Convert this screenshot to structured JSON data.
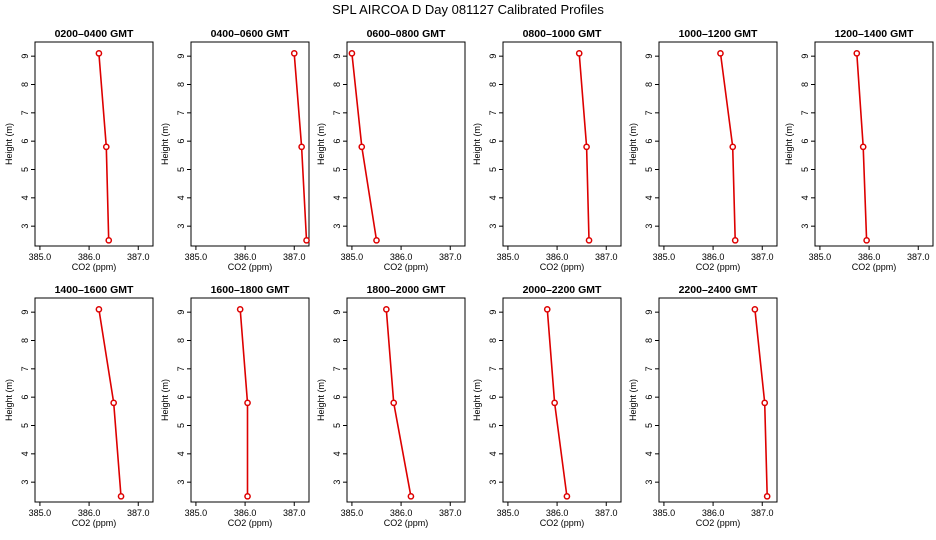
{
  "title": "SPL AIRCOA D  Day 081127  Calibrated Profiles",
  "colors": {
    "series": "#dd0000",
    "axis": "#000000"
  },
  "chart_data": [
    {
      "type": "line",
      "title": "0200–0400 GMT",
      "xlabel": "CO2 (ppm)",
      "ylabel": "Height (m)",
      "xlim": [
        384.9,
        387.3
      ],
      "ylim": [
        2.3,
        9.5
      ],
      "x_ticks": [
        "385.0",
        "386.0",
        "387.0"
      ],
      "y_ticks": [
        "3",
        "4",
        "5",
        "6",
        "7",
        "8",
        "9"
      ],
      "series": [
        {
          "x": [
            386.2,
            386.35,
            386.4
          ],
          "y": [
            9.1,
            5.8,
            2.5
          ]
        }
      ]
    },
    {
      "type": "line",
      "title": "0400–0600 GMT",
      "xlabel": "CO2 (ppm)",
      "ylabel": "Height (m)",
      "xlim": [
        384.9,
        387.3
      ],
      "ylim": [
        2.3,
        9.5
      ],
      "x_ticks": [
        "385.0",
        "386.0",
        "387.0"
      ],
      "y_ticks": [
        "3",
        "4",
        "5",
        "6",
        "7",
        "8",
        "9"
      ],
      "series": [
        {
          "x": [
            387.0,
            387.15,
            387.25
          ],
          "y": [
            9.1,
            5.8,
            2.5
          ]
        }
      ]
    },
    {
      "type": "line",
      "title": "0600–0800 GMT",
      "xlabel": "CO2 (ppm)",
      "ylabel": "Height (m)",
      "xlim": [
        384.9,
        387.3
      ],
      "ylim": [
        2.3,
        9.5
      ],
      "x_ticks": [
        "385.0",
        "386.0",
        "387.0"
      ],
      "y_ticks": [
        "3",
        "4",
        "5",
        "6",
        "7",
        "8",
        "9"
      ],
      "series": [
        {
          "x": [
            385.0,
            385.2,
            385.5
          ],
          "y": [
            9.1,
            5.8,
            2.5
          ]
        }
      ]
    },
    {
      "type": "line",
      "title": "0800–1000 GMT",
      "xlabel": "CO2 (ppm)",
      "ylabel": "Height (m)",
      "xlim": [
        384.9,
        387.3
      ],
      "ylim": [
        2.3,
        9.5
      ],
      "x_ticks": [
        "385.0",
        "386.0",
        "387.0"
      ],
      "y_ticks": [
        "3",
        "4",
        "5",
        "6",
        "7",
        "8",
        "9"
      ],
      "series": [
        {
          "x": [
            386.45,
            386.6,
            386.65
          ],
          "y": [
            9.1,
            5.8,
            2.5
          ]
        }
      ]
    },
    {
      "type": "line",
      "title": "1000–1200 GMT",
      "xlabel": "CO2 (ppm)",
      "ylabel": "Height (m)",
      "xlim": [
        384.9,
        387.3
      ],
      "ylim": [
        2.3,
        9.5
      ],
      "x_ticks": [
        "385.0",
        "386.0",
        "387.0"
      ],
      "y_ticks": [
        "3",
        "4",
        "5",
        "6",
        "7",
        "8",
        "9"
      ],
      "series": [
        {
          "x": [
            386.15,
            386.4,
            386.45
          ],
          "y": [
            9.1,
            5.8,
            2.5
          ]
        }
      ]
    },
    {
      "type": "line",
      "title": "1200–1400 GMT",
      "xlabel": "CO2 (ppm)",
      "ylabel": "Height (m)",
      "xlim": [
        384.9,
        387.3
      ],
      "ylim": [
        2.3,
        9.5
      ],
      "x_ticks": [
        "385.0",
        "386.0",
        "387.0"
      ],
      "y_ticks": [
        "3",
        "4",
        "5",
        "6",
        "7",
        "8",
        "9"
      ],
      "series": [
        {
          "x": [
            385.75,
            385.88,
            385.95
          ],
          "y": [
            9.1,
            5.8,
            2.5
          ]
        }
      ]
    },
    {
      "type": "line",
      "title": "1400–1600 GMT",
      "xlabel": "CO2 (ppm)",
      "ylabel": "Height (m)",
      "xlim": [
        384.9,
        387.3
      ],
      "ylim": [
        2.3,
        9.5
      ],
      "x_ticks": [
        "385.0",
        "386.0",
        "387.0"
      ],
      "y_ticks": [
        "3",
        "4",
        "5",
        "6",
        "7",
        "8",
        "9"
      ],
      "series": [
        {
          "x": [
            386.2,
            386.5,
            386.65
          ],
          "y": [
            9.1,
            5.8,
            2.5
          ]
        }
      ]
    },
    {
      "type": "line",
      "title": "1600–1800 GMT",
      "xlabel": "CO2 (ppm)",
      "ylabel": "Height (m)",
      "xlim": [
        384.9,
        387.3
      ],
      "ylim": [
        2.3,
        9.5
      ],
      "x_ticks": [
        "385.0",
        "386.0",
        "387.0"
      ],
      "y_ticks": [
        "3",
        "4",
        "5",
        "6",
        "7",
        "8",
        "9"
      ],
      "series": [
        {
          "x": [
            385.9,
            386.05,
            386.05
          ],
          "y": [
            9.1,
            5.8,
            2.5
          ]
        }
      ]
    },
    {
      "type": "line",
      "title": "1800–2000 GMT",
      "xlabel": "CO2 (ppm)",
      "ylabel": "Height (m)",
      "xlim": [
        384.9,
        387.3
      ],
      "ylim": [
        2.3,
        9.5
      ],
      "x_ticks": [
        "385.0",
        "386.0",
        "387.0"
      ],
      "y_ticks": [
        "3",
        "4",
        "5",
        "6",
        "7",
        "8",
        "9"
      ],
      "series": [
        {
          "x": [
            385.7,
            385.85,
            386.2
          ],
          "y": [
            9.1,
            5.8,
            2.5
          ]
        }
      ]
    },
    {
      "type": "line",
      "title": "2000–2200 GMT",
      "xlabel": "CO2 (ppm)",
      "ylabel": "Height (m)",
      "xlim": [
        384.9,
        387.3
      ],
      "ylim": [
        2.3,
        9.5
      ],
      "x_ticks": [
        "385.0",
        "386.0",
        "387.0"
      ],
      "y_ticks": [
        "3",
        "4",
        "5",
        "6",
        "7",
        "8",
        "9"
      ],
      "series": [
        {
          "x": [
            385.8,
            385.95,
            386.2
          ],
          "y": [
            9.1,
            5.8,
            2.5
          ]
        }
      ]
    },
    {
      "type": "line",
      "title": "2200–2400 GMT",
      "xlabel": "CO2 (ppm)",
      "ylabel": "Height (m)",
      "xlim": [
        384.9,
        387.3
      ],
      "ylim": [
        2.3,
        9.5
      ],
      "x_ticks": [
        "385.0",
        "386.0",
        "387.0"
      ],
      "y_ticks": [
        "3",
        "4",
        "5",
        "6",
        "7",
        "8",
        "9"
      ],
      "series": [
        {
          "x": [
            386.85,
            387.05,
            387.1
          ],
          "y": [
            9.1,
            5.8,
            2.5
          ]
        }
      ]
    }
  ]
}
